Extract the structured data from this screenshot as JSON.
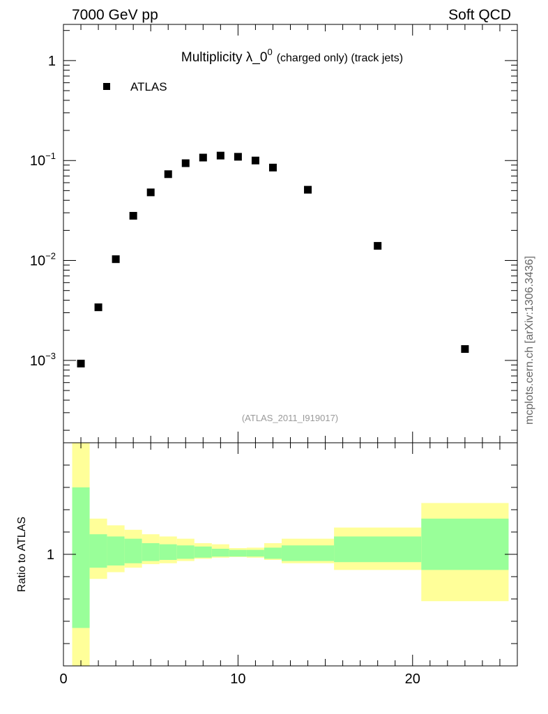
{
  "header": {
    "left": "7000 GeV pp",
    "right": "Soft QCD"
  },
  "side_label": "mcplots.cern.ch [arXiv:1306.3436]",
  "chart_data": [
    {
      "type": "scatter",
      "title_main": "Multiplicity λ_0",
      "title_sup": "0",
      "title_suffix": "(charged only) (track jets)",
      "reference_label": "(ATLAS_2011_I919017)",
      "y_scale": "log",
      "ylim": [
        0.00015,
        2.3
      ],
      "xlim": [
        0,
        26
      ],
      "y_ticks": [
        {
          "value": 1,
          "label": "1"
        },
        {
          "value": 0.1,
          "base": "10",
          "exp": "−1"
        },
        {
          "value": 0.01,
          "base": "10",
          "exp": "−2"
        },
        {
          "value": 0.001,
          "base": "10",
          "exp": "−3"
        }
      ],
      "legend": {
        "position": "top-left",
        "entries": [
          {
            "name": "ATLAS",
            "marker": "square",
            "color": "#000000"
          }
        ]
      },
      "series": [
        {
          "name": "ATLAS",
          "x": [
            1,
            2,
            3,
            4,
            5,
            6,
            7,
            8,
            9,
            10,
            11,
            12,
            14,
            18,
            23
          ],
          "y": [
            0.00093,
            0.0034,
            0.0103,
            0.028,
            0.048,
            0.073,
            0.094,
            0.107,
            0.112,
            0.109,
            0.1,
            0.085,
            0.051,
            0.014,
            0.0013
          ]
        }
      ]
    },
    {
      "type": "area",
      "ylabel": "Ratio to ATLAS",
      "xlim": [
        0,
        26
      ],
      "ylim": [
        0.5,
        1.5
      ],
      "x_ticks": [
        {
          "value": 0,
          "label": "0"
        },
        {
          "value": 10,
          "label": "10"
        },
        {
          "value": 20,
          "label": "20"
        }
      ],
      "y_ticks": [
        {
          "value": 1,
          "label": "1"
        }
      ],
      "colors": {
        "outer_band": "#ffff99",
        "inner_band": "#99ff99"
      },
      "bins": [
        {
          "xlo": 0.5,
          "xhi": 1.5,
          "outer": [
            0.5,
            1.5
          ],
          "inner": [
            0.67,
            1.3
          ]
        },
        {
          "xlo": 1.5,
          "xhi": 2.5,
          "outer": [
            0.89,
            1.16
          ],
          "inner": [
            0.94,
            1.09
          ]
        },
        {
          "xlo": 2.5,
          "xhi": 3.5,
          "outer": [
            0.92,
            1.13
          ],
          "inner": [
            0.95,
            1.08
          ]
        },
        {
          "xlo": 3.5,
          "xhi": 4.5,
          "outer": [
            0.94,
            1.11
          ],
          "inner": [
            0.96,
            1.07
          ]
        },
        {
          "xlo": 4.5,
          "xhi": 5.5,
          "outer": [
            0.956,
            1.09
          ],
          "inner": [
            0.97,
            1.05
          ]
        },
        {
          "xlo": 5.5,
          "xhi": 6.5,
          "outer": [
            0.96,
            1.08
          ],
          "inner": [
            0.975,
            1.045
          ]
        },
        {
          "xlo": 6.5,
          "xhi": 7.5,
          "outer": [
            0.97,
            1.07
          ],
          "inner": [
            0.98,
            1.04
          ]
        },
        {
          "xlo": 7.5,
          "xhi": 8.5,
          "outer": [
            0.98,
            1.05
          ],
          "inner": [
            0.985,
            1.035
          ]
        },
        {
          "xlo": 8.5,
          "xhi": 9.5,
          "outer": [
            0.985,
            1.045
          ],
          "inner": [
            0.99,
            1.025
          ]
        },
        {
          "xlo": 9.5,
          "xhi": 10.5,
          "outer": [
            0.988,
            1.028
          ],
          "inner": [
            0.99,
            1.02
          ]
        },
        {
          "xlo": 10.5,
          "xhi": 11.5,
          "outer": [
            0.985,
            1.03
          ],
          "inner": [
            0.99,
            1.02
          ]
        },
        {
          "xlo": 11.5,
          "xhi": 12.5,
          "outer": [
            0.975,
            1.05
          ],
          "inner": [
            0.98,
            1.03
          ]
        },
        {
          "xlo": 12.5,
          "xhi": 15.5,
          "outer": [
            0.96,
            1.07
          ],
          "inner": [
            0.97,
            1.04
          ]
        },
        {
          "xlo": 15.5,
          "xhi": 20.5,
          "outer": [
            0.93,
            1.12
          ],
          "inner": [
            0.965,
            1.08
          ]
        },
        {
          "xlo": 20.5,
          "xhi": 25.5,
          "outer": [
            0.79,
            1.23
          ],
          "inner": [
            0.93,
            1.16
          ]
        }
      ]
    }
  ]
}
